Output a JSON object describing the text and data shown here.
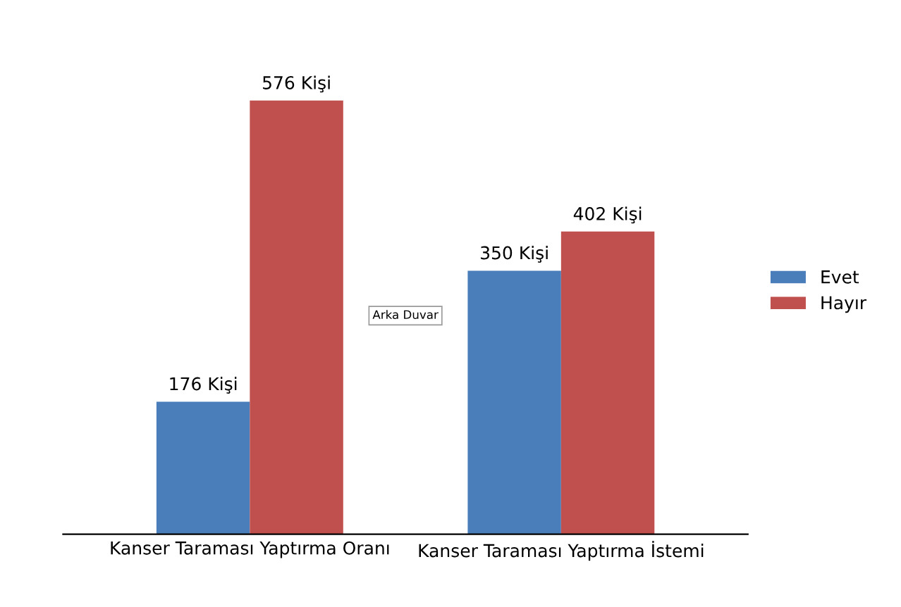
{
  "chart_data": {
    "type": "bar",
    "categories": [
      "Kanser Taraması Yaptırma Oranı",
      "Kanser Taraması Yaptırma İstemi"
    ],
    "series": [
      {
        "name": "Evet",
        "color": "#4a7ebb",
        "values": [
          176,
          350
        ],
        "value_labels": [
          "176 Kişi",
          "350 Kişi"
        ]
      },
      {
        "name": "Hayır",
        "color": "#c0504d",
        "values": [
          576,
          402
        ],
        "value_labels": [
          "576 Kişi",
          "402 Kişi"
        ]
      }
    ],
    "legend": "right",
    "grid": false,
    "annotations": [
      "Arka Duvar"
    ]
  }
}
